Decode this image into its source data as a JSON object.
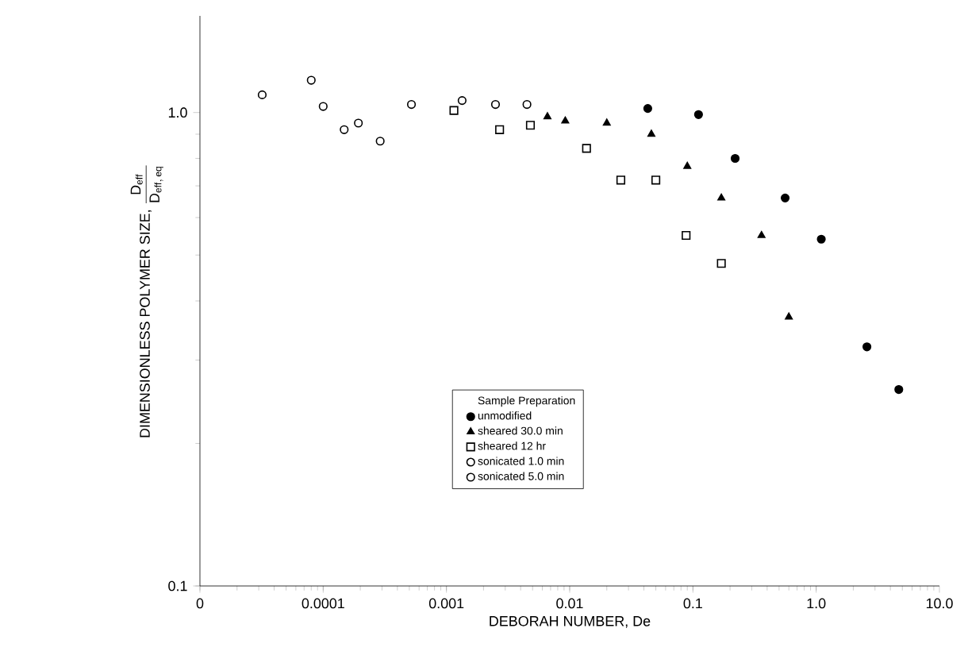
{
  "chart_data": {
    "type": "scatter",
    "xlabel": "DEBORAH NUMBER, De",
    "ylabel": "\\mbox{DIMENSIONLESS POLYMER SIZE, } \\frac{\\mathrm{D_{eff}}}{\\mathrm{D_{eff,\\,eq}}}",
    "legend_title": "Sample Preparation",
    "log": "xy",
    "legend": "bottom",
    "grid": false,
    "xlim": [
      1e-05,
      10
    ],
    "ylim": [
      0.1,
      1.6
    ],
    "xticks": [
      {
        "value": 1e-05,
        "label": "0"
      },
      0.0001,
      0.001,
      0.01,
      0.1,
      {
        "value": 1,
        "label": "1.0"
      },
      {
        "value": 10,
        "label": "10.0"
      }
    ],
    "yticks": [
      0.1,
      {
        "value": 1,
        "label": "1.0"
      }
    ],
    "series": [
      {
        "name": "unmodified",
        "color": "#000000",
        "marker": "circle",
        "x": [
          0.043,
          0.111,
          0.22,
          0.56,
          1.1,
          2.58,
          4.68
        ],
        "values": [
          1.02,
          0.99,
          0.8,
          0.66,
          0.54,
          0.32,
          0.26
        ]
      },
      {
        "name": "sheared 30.0 min",
        "color": "#000000",
        "marker": "triangle",
        "x": [
          0.0066,
          0.0092,
          0.02,
          0.046,
          0.09,
          0.17,
          0.36,
          0.6
        ],
        "values": [
          0.98,
          0.96,
          0.95,
          0.9,
          0.77,
          0.66,
          0.55,
          0.37
        ]
      },
      {
        "name": "sheared 12 hr",
        "color": "#ffffff",
        "marker": "square",
        "x": [
          0.00115,
          0.0027,
          0.0048,
          0.0137,
          0.026,
          0.05,
          0.088,
          0.17
        ],
        "values": [
          1.01,
          0.92,
          0.94,
          0.84,
          0.72,
          0.72,
          0.55,
          0.48
        ]
      },
      {
        "name": "sonicated 1.0 min",
        "color": "#ffffff",
        "marker": "circle",
        "x": [
          3.2e-05,
          8e-05,
          0.0001,
          0.000148,
          0.000193
        ],
        "values": [
          1.09,
          1.17,
          1.03,
          0.92,
          0.95
        ]
      },
      {
        "name": "sonicated 5.0 min",
        "color": "#ffffff",
        "marker": "circle",
        "x": [
          0.00029,
          0.00052,
          0.00134,
          0.0025,
          0.0045
        ],
        "values": [
          0.87,
          1.04,
          1.06,
          1.04,
          1.04
        ]
      }
    ]
  }
}
